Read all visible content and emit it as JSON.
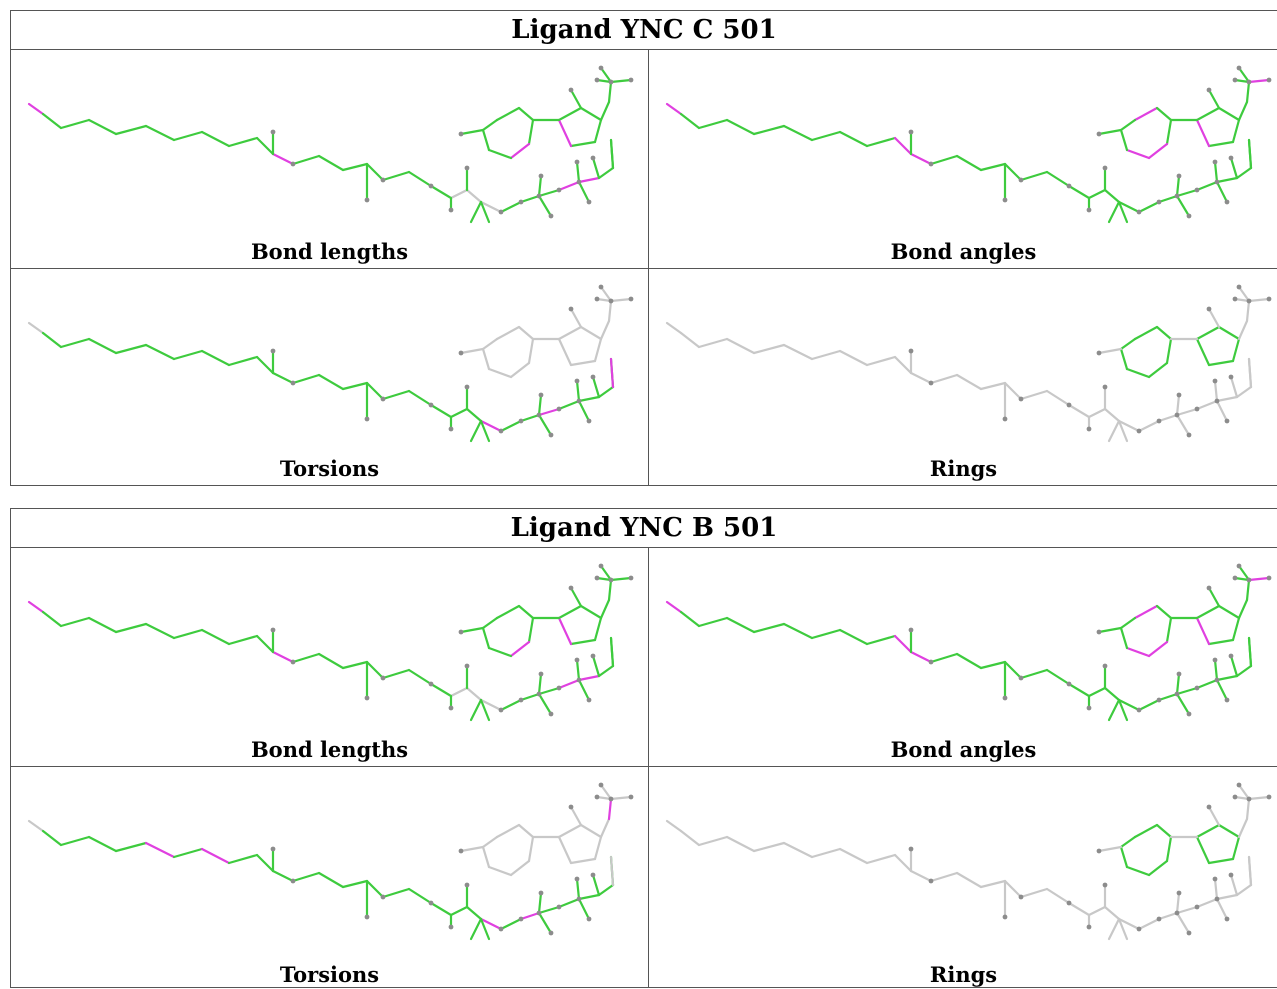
{
  "colors": {
    "green": "#3ecb3e",
    "magenta": "#e040e0",
    "grey": "#c8c8c8",
    "atom": "#8c8c8c"
  },
  "tables": [
    {
      "title": "Ligand YNC C 501",
      "panels": [
        {
          "caption": "Bond lengths",
          "scheme": "lengths"
        },
        {
          "caption": "Bond angles",
          "scheme": "angles"
        },
        {
          "caption": "Torsions",
          "scheme": "torsions"
        },
        {
          "caption": "Rings",
          "scheme": "rings"
        }
      ]
    },
    {
      "title": "Ligand YNC B 501",
      "panels": [
        {
          "caption": "Bond lengths",
          "scheme": "lengths"
        },
        {
          "caption": "Bond angles",
          "scheme": "angles"
        },
        {
          "caption": "Torsions",
          "scheme": "torsions2"
        },
        {
          "caption": "Rings",
          "scheme": "rings"
        }
      ]
    }
  ]
}
